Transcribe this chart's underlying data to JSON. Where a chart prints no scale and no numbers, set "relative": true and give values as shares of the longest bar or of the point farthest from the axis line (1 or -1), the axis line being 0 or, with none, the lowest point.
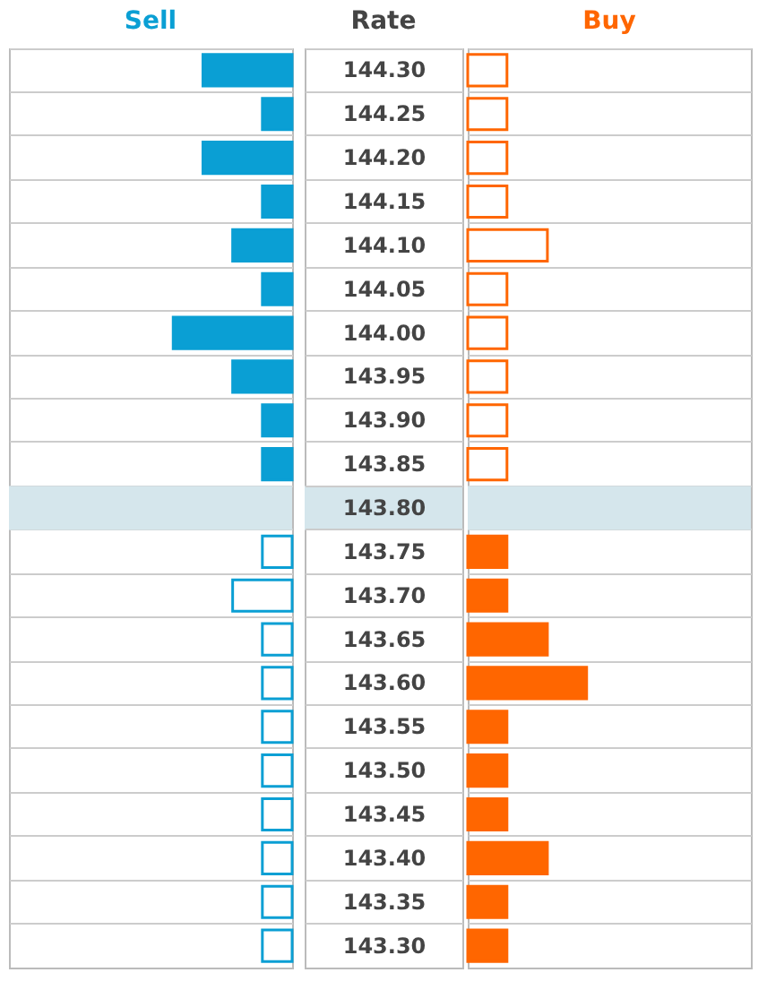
{
  "chart_data": [
    {
      "type": "bar",
      "orientation": "horizontal",
      "relative": true,
      "legend": "top",
      "grid": "y",
      "tick_labels": false,
      "categories": [
        "144.30",
        "144.25",
        "144.20",
        "144.15",
        "144.10",
        "144.05",
        "144.00",
        "143.95",
        "143.90",
        "143.85",
        "143.80",
        "143.75",
        "143.70",
        "143.65",
        "143.60",
        "143.55",
        "143.50",
        "143.45",
        "143.40",
        "143.35",
        "143.30"
      ],
      "bands": [
        {
          "axis": "y",
          "from": "143.80",
          "to": "143.80",
          "color": "#d5e6ec"
        }
      ],
      "series": [
        {
          "name": "Sell",
          "color": "#0a9fd4",
          "values": [
            -0.75,
            -0.25,
            -0.75,
            -0.25,
            -0.5,
            -0.25,
            -1,
            -0.5,
            -0.25,
            -0.25,
            null,
            -0.25,
            -0.5,
            -0.25,
            -0.25,
            -0.25,
            -0.25,
            -0.25,
            -0.25,
            -0.25,
            -0.25
          ],
          "colors": [
            "#0a9fd4",
            "#0a9fd4",
            "#0a9fd4",
            "#0a9fd4",
            "#0a9fd4",
            "#0a9fd4",
            "#0a9fd4",
            "#0a9fd4",
            "#0a9fd4",
            "#0a9fd4",
            "#0a9fd4",
            "#ffffff",
            "#ffffff",
            "#ffffff",
            "#ffffff",
            "#ffffff",
            "#ffffff",
            "#ffffff",
            "#ffffff",
            "#ffffff",
            "#ffffff"
          ]
        }
      ]
    },
    {
      "type": "bar",
      "orientation": "horizontal",
      "relative": true,
      "legend": "top",
      "grid": "y",
      "ylabel": "Rate",
      "categories": [
        "144.30",
        "144.25",
        "144.20",
        "144.15",
        "144.10",
        "144.05",
        "144.00",
        "143.95",
        "143.90",
        "143.85",
        "143.80",
        "143.75",
        "143.70",
        "143.65",
        "143.60",
        "143.55",
        "143.50",
        "143.45",
        "143.40",
        "143.35",
        "143.30"
      ],
      "bands": [
        {
          "axis": "y",
          "from": "143.80",
          "to": "143.80",
          "color": "#d5e6ec"
        }
      ],
      "series": [
        {
          "name": "Buy",
          "color": "#ff6600",
          "values": [
            0.33,
            0.33,
            0.33,
            0.33,
            0.67,
            0.33,
            0.33,
            0.33,
            0.33,
            0.33,
            null,
            0.33,
            0.33,
            0.67,
            1,
            0.33,
            0.33,
            0.33,
            0.67,
            0.33,
            0.33
          ],
          "colors": [
            "#ffffff",
            "#ffffff",
            "#ffffff",
            "#ffffff",
            "#ffffff",
            "#ffffff",
            "#ffffff",
            "#ffffff",
            "#ffffff",
            "#ffffff",
            "#ff6600",
            "#ff6600",
            "#ff6600",
            "#ff6600",
            "#ff6600",
            "#ff6600",
            "#ff6600",
            "#ff6600",
            "#ff6600",
            "#ff6600",
            "#ff6600"
          ]
        }
      ]
    }
  ]
}
